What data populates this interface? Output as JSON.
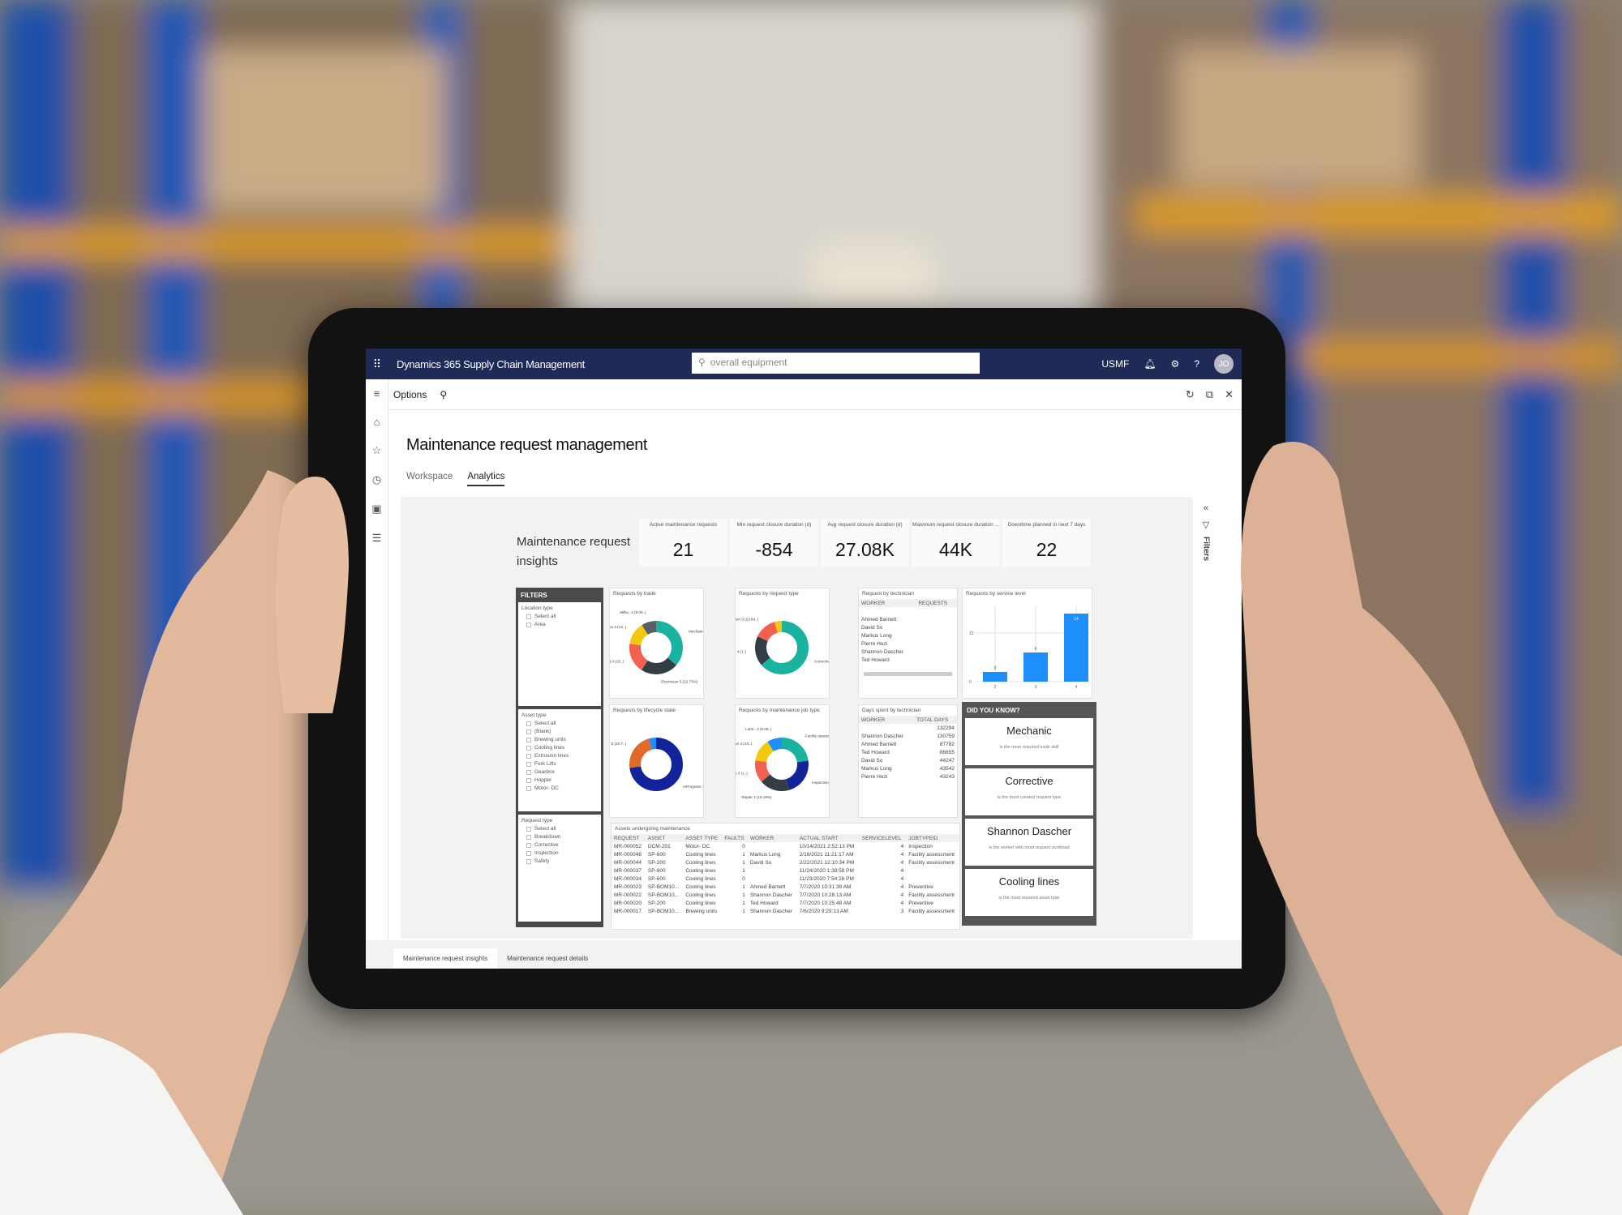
{
  "topbar": {
    "app_name": "Dynamics 365 Supply Chain Management",
    "search_placeholder": "overall equipment",
    "company": "USMF",
    "avatar": "JO"
  },
  "options": {
    "label": "Options"
  },
  "page": {
    "title": "Maintenance request management",
    "tabs": [
      {
        "label": "Workspace"
      },
      {
        "label": "Analytics"
      }
    ]
  },
  "filters_pane": {
    "label": "Filters"
  },
  "insights": {
    "title_line1": "Maintenance request",
    "title_line2": "insights",
    "kpis": [
      {
        "label": "Active maintenance requests",
        "value": "21"
      },
      {
        "label": "Min request closure duration (d)",
        "value": "-854"
      },
      {
        "label": "Avg request closure duration (d)",
        "value": "27.08K"
      },
      {
        "label": "Maximum request closure duration ...",
        "value": "44K"
      },
      {
        "label": "Downtime planned in next 7 days",
        "value": "22"
      }
    ]
  },
  "filters": {
    "header": "FILTERS",
    "groups": [
      {
        "title": "Location type",
        "items": [
          "Select all",
          "Area"
        ]
      },
      {
        "title": "Asset type",
        "items": [
          "Select all",
          "(Blank)",
          "Brewing units",
          "Cooling lines",
          "Extrusion lines",
          "Fork Lifts",
          "Gearbox",
          "Hopper",
          "Motor- DC"
        ]
      },
      {
        "title": "Request type",
        "items": [
          "Select all",
          "Breakdown",
          "Corrective",
          "Inspection",
          "Safety"
        ]
      }
    ]
  },
  "donuts": [
    {
      "title": "Requests by trade",
      "slices": [
        {
          "label": "Mechanic 8 (36.3..)",
          "value": 8,
          "color": "#1ab3a0"
        },
        {
          "label": "Electrician 5 (22.73%)",
          "value": 5,
          "color": "#333d44"
        },
        {
          "label": "(Blank) 4 (18..)",
          "value": 4,
          "color": "#f2604f"
        },
        {
          "label": "Operator 3 (13..)",
          "value": 3,
          "color": "#f2c811"
        },
        {
          "label": "Millw.. 2 (9.09..)",
          "value": 2,
          "color": "#5a5e66"
        }
      ]
    },
    {
      "title": "Requests by request type",
      "slices": [
        {
          "label": "Corrective 14 (63.64%)",
          "value": 14,
          "color": "#1ab3a0"
        },
        {
          "label": "Breakdo.. 4 (1..)",
          "value": 4,
          "color": "#333d44"
        },
        {
          "label": "Inspection 3 (13.64..)",
          "value": 3,
          "color": "#f2604f"
        },
        {
          "label": "",
          "value": 1,
          "color": "#f2c811"
        }
      ]
    },
    {
      "title": "Requests by lifecycle state",
      "slices": [
        {
          "label": "InProgress 16 (72.73%)",
          "value": 16,
          "color": "#13239a"
        },
        {
          "label": "New 5 (22.7..)",
          "value": 5,
          "color": "#e0692b"
        },
        {
          "label": "",
          "value": 1,
          "color": "#1e8fff"
        }
      ]
    },
    {
      "title": "Requests by maintenance job type",
      "slices": [
        {
          "label": "Facility assessm.. 5 (22.73%)",
          "value": 5,
          "color": "#1ab3a0"
        },
        {
          "label": "Inspection 5 (22.7..)",
          "value": 5,
          "color": "#13239a"
        },
        {
          "label": "Repair 4 (18.18%)",
          "value": 4,
          "color": "#333d44"
        },
        {
          "label": "(Blank) 3 (1..)",
          "value": 3,
          "color": "#f2604f"
        },
        {
          "label": "Preventive 3 (13..)",
          "value": 3,
          "color": "#f2c811"
        },
        {
          "label": "Lubri.. 2 (9.09..)",
          "value": 2,
          "color": "#1e8fff"
        }
      ]
    }
  ],
  "tech_requests": {
    "title": "Request by technician",
    "headers": [
      "WORKER",
      "REQUESTS"
    ],
    "rows": [
      "Ahmed Barnett",
      "David So",
      "Markus Long",
      "Pierre Hezi",
      "Shannon Dascher",
      "Ted Howard"
    ]
  },
  "service_level": {
    "title": "Requests by service level",
    "categories": [
      "2",
      "3",
      "4"
    ],
    "values": [
      2,
      6,
      14
    ],
    "y_ticks": [
      "0",
      "10"
    ],
    "ylim": [
      0,
      15
    ],
    "color": "#1e8fff"
  },
  "days_by_tech": {
    "title": "Days spent by technician",
    "headers": [
      "WORKER",
      "TOTAL DAYS"
    ],
    "rows": [
      [
        "",
        "132294"
      ],
      [
        "Shannon Dascher",
        "130759"
      ],
      [
        "Ahmed Barnett",
        "87782"
      ],
      [
        "Ted Howard",
        "86655"
      ],
      [
        "David So",
        "44247"
      ],
      [
        "Markus Long",
        "43542"
      ],
      [
        "Pierre Hezi",
        "43243"
      ]
    ]
  },
  "assets_table": {
    "title": "Assets undergoing maintenance",
    "headers": [
      "REQUEST",
      "ASSET",
      "ASSET TYPE",
      "FAULTS",
      "WORKER",
      "ACTUAL START",
      "SERVICELEVEL",
      "JOBTYPEID"
    ],
    "rows": [
      [
        "MR-000052",
        "DCM-201",
        "Motor- DC",
        "0",
        "",
        "10/14/2021 2:52:13 PM",
        "4",
        "Inspection"
      ],
      [
        "MR-000048",
        "SP-600",
        "Cooling lines",
        "1",
        "Markus Long",
        "2/16/2021 11:21:17 AM",
        "4",
        "Facility assessment"
      ],
      [
        "MR-000044",
        "SP-200",
        "Cooling lines",
        "1",
        "David So",
        "2/22/2021 12:10:34 PM",
        "4",
        "Facility assessment"
      ],
      [
        "MR-000037",
        "SP-600",
        "Cooling lines",
        "1",
        "",
        "11/24/2020 1:38:58 PM",
        "4",
        ""
      ],
      [
        "MR-000034",
        "SP-600",
        "Cooling lines",
        "0",
        "",
        "11/23/2020 7:54:26 PM",
        "4",
        ""
      ],
      [
        "MR-000023",
        "SP-BOM10...",
        "Cooling lines",
        "1",
        "Ahmed Barnett",
        "7/7/2020 10:31:39 AM",
        "4",
        "Preventive"
      ],
      [
        "MR-000022",
        "SP-BOM10...",
        "Cooling lines",
        "1",
        "Shannon Dascher",
        "7/7/2020 10:28:13 AM",
        "4",
        "Facility assessment"
      ],
      [
        "MR-000020",
        "SP-200",
        "Cooling lines",
        "1",
        "Ted Howard",
        "7/7/2020 10:25:48 AM",
        "4",
        "Preventive"
      ],
      [
        "MR-000017",
        "SP-BOM10...",
        "Brewing units",
        "1",
        "Shannon Dascher",
        "7/6/2020 9:29:13 AM",
        "3",
        "Facility assessment"
      ]
    ]
  },
  "did_you_know": {
    "header": "DID YOU KNOW?",
    "cards": [
      {
        "big": "Mechanic",
        "small": "is the most required trade skill"
      },
      {
        "big": "Corrective",
        "small": "is the most created request type"
      },
      {
        "big": "Shannon Dascher",
        "small": "is the worker with most request workload"
      },
      {
        "big": "Cooling lines",
        "small": "is the most repaired asset type"
      }
    ]
  },
  "bottom_tabs": [
    {
      "label": "Maintenance request insights"
    },
    {
      "label": "Maintenance request details"
    }
  ]
}
